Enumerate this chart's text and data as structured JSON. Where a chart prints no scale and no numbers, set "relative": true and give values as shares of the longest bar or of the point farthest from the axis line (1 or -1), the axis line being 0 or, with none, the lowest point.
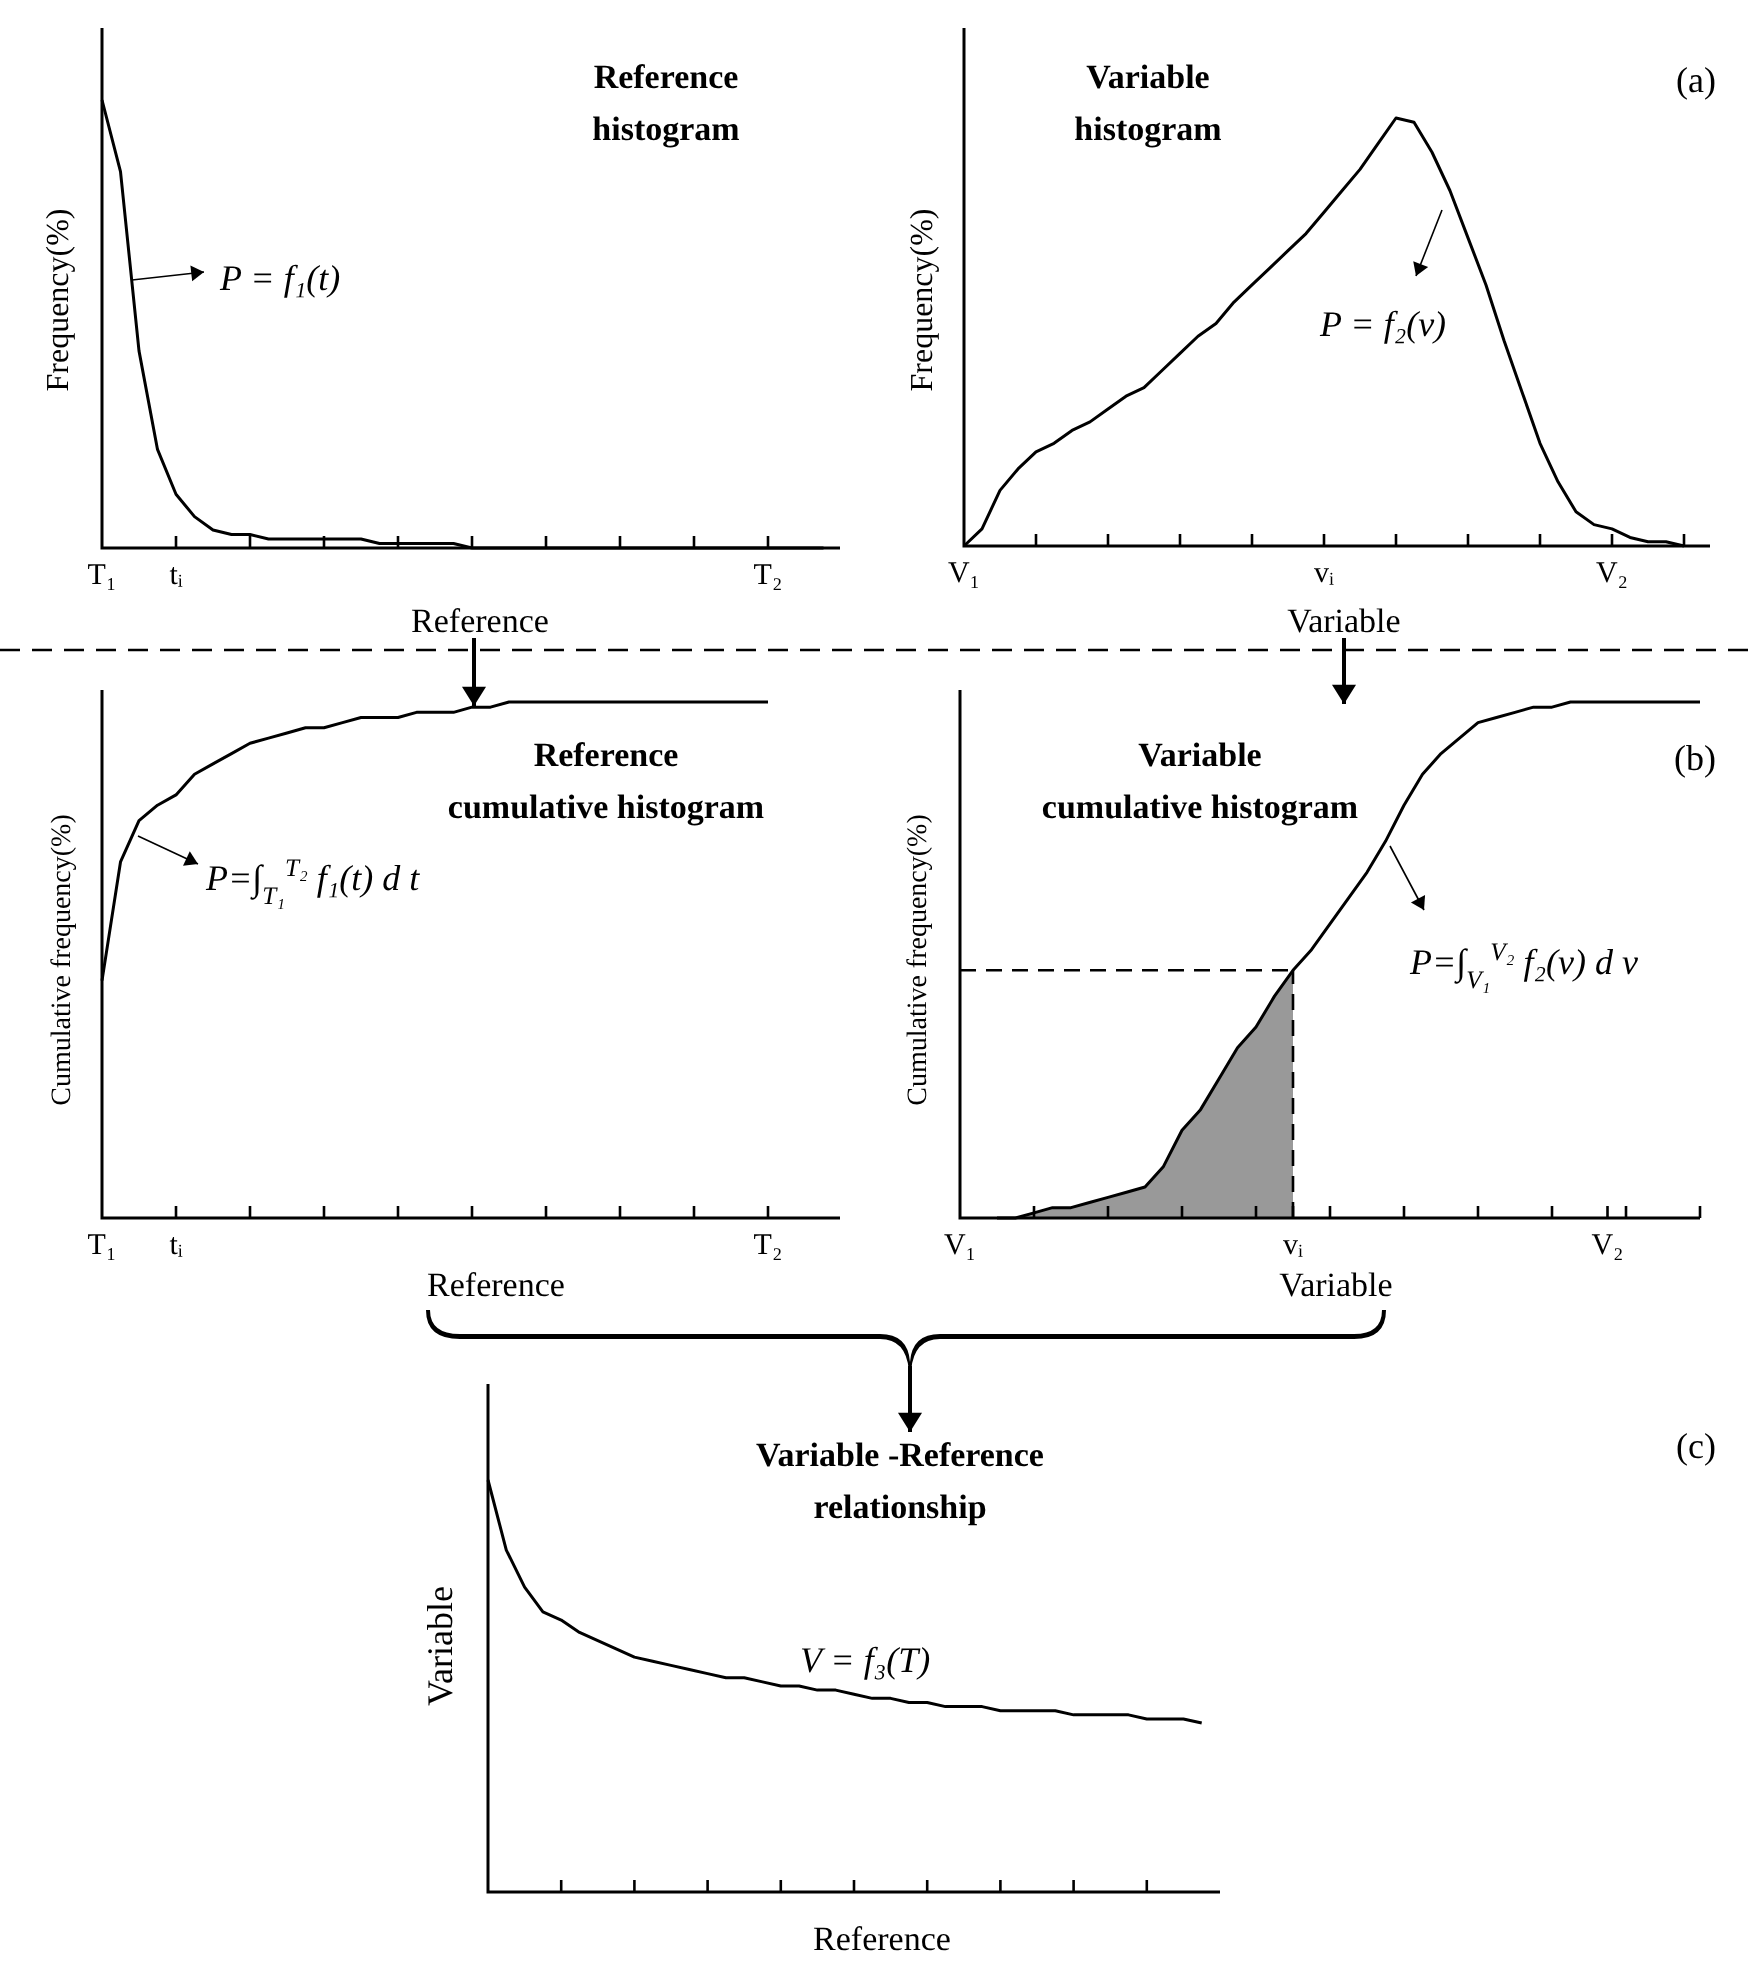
{
  "chart_data": [
    {
      "type": "line",
      "title": "Reference\nhistogram",
      "xlabel": "Reference",
      "ylabel": "Frequency(%)",
      "relative": true,
      "categories": [
        "T₁",
        null,
        null,
        null,
        "tᵢ",
        null,
        null,
        null,
        null,
        null,
        null,
        null,
        null,
        null,
        null,
        null,
        null,
        null,
        null,
        null,
        null,
        null,
        null,
        null,
        null,
        null,
        null,
        null,
        null,
        null,
        null,
        null,
        null,
        null,
        null,
        null,
        "T₂",
        null,
        null,
        null
      ],
      "series": [
        {
          "color": "#000000",
          "values": [
            1,
            0.84,
            0.44,
            0.22,
            0.12,
            0.07,
            0.04,
            0.03,
            0.03,
            0.02,
            0.02,
            0.02,
            0.02,
            0.02,
            0.02,
            0.01,
            0.01,
            0.01,
            0.01,
            0.01,
            0,
            0,
            0,
            0,
            0,
            0,
            0,
            0,
            0,
            0,
            0,
            0,
            0,
            0,
            0,
            0,
            0,
            0,
            0,
            0
          ]
        }
      ],
      "annotations": [
        "P = f₁(t)"
      ]
    },
    {
      "type": "line",
      "title": "Variable\nhistogram",
      "xlabel": "Variable",
      "ylabel": "Frequency(%)",
      "relative": true,
      "categories": [
        "V₁",
        null,
        null,
        null,
        null,
        null,
        null,
        null,
        null,
        null,
        null,
        null,
        null,
        null,
        null,
        null,
        null,
        null,
        null,
        null,
        "vᵢ",
        null,
        null,
        null,
        null,
        null,
        null,
        null,
        null,
        null,
        null,
        null,
        null,
        null,
        null,
        null,
        "V₂",
        null,
        null,
        null,
        null
      ],
      "series": [
        {
          "color": "#000000",
          "values": [
            0,
            0.04,
            0.13,
            0.18,
            0.22,
            0.24,
            0.27,
            0.29,
            0.32,
            0.35,
            0.37,
            0.41,
            0.45,
            0.49,
            0.52,
            0.57,
            0.61,
            0.65,
            0.69,
            0.73,
            0.78,
            0.83,
            0.88,
            0.94,
            1,
            0.99,
            0.92,
            0.83,
            0.72,
            0.61,
            0.48,
            0.36,
            0.24,
            0.15,
            0.08,
            0.05,
            0.04,
            0.02,
            0.01,
            0.01,
            0
          ]
        }
      ],
      "annotations": [
        "P = f₂(v)",
        "(a)"
      ]
    },
    {
      "type": "line",
      "title": "Reference\ncumulative histogram",
      "xlabel": "Reference",
      "ylabel": "Cumulative frequency(%)",
      "relative": true,
      "categories": [
        "T₁",
        null,
        null,
        null,
        "tᵢ",
        null,
        null,
        null,
        null,
        null,
        null,
        null,
        null,
        null,
        null,
        null,
        null,
        null,
        null,
        null,
        null,
        null,
        null,
        null,
        null,
        null,
        null,
        null,
        null,
        null,
        null,
        null,
        null,
        null,
        null,
        null,
        "T₂"
      ],
      "series": [
        {
          "color": "#000000",
          "values": [
            0.46,
            0.69,
            0.77,
            0.8,
            0.82,
            0.86,
            0.88,
            0.9,
            0.92,
            0.93,
            0.94,
            0.95,
            0.95,
            0.96,
            0.97,
            0.97,
            0.97,
            0.98,
            0.98,
            0.98,
            0.99,
            0.99,
            1,
            1,
            1,
            1,
            1,
            1,
            1,
            1,
            1,
            1,
            1,
            1,
            1,
            1,
            1
          ]
        }
      ],
      "annotations": [
        "P=∫$_{T₁}$$^{T₂}$ f₁(t) d t"
      ]
    },
    {
      "type": "line",
      "title": "Variable\ncumulative histogram",
      "xlabel": "Variable",
      "ylabel": "Cumulative frequency(%)",
      "relative": true,
      "categories": [
        "V₁",
        null,
        null,
        null,
        null,
        null,
        null,
        null,
        null,
        null,
        null,
        null,
        null,
        null,
        null,
        null,
        null,
        null,
        "vᵢ",
        null,
        null,
        null,
        null,
        null,
        null,
        null,
        null,
        null,
        null,
        null,
        null,
        null,
        null,
        null,
        null,
        "V₂",
        null,
        null,
        null,
        null,
        null
      ],
      "series": [
        {
          "type": "area",
          "color": "#999999",
          "values": [
            null,
            null,
            0,
            0,
            0.01,
            0.02,
            0.02,
            0.03,
            0.04,
            0.05,
            0.06,
            0.1,
            0.17,
            0.21,
            0.27,
            0.33,
            0.37,
            0.43,
            0.48,
            null,
            null,
            null,
            null,
            null,
            null,
            null,
            null,
            null,
            null,
            null,
            null,
            null,
            null,
            null,
            null,
            null,
            null,
            null,
            null,
            null,
            null
          ]
        },
        {
          "color": "#000000",
          "values": [
            null,
            null,
            0,
            0,
            0.01,
            0.02,
            0.02,
            0.03,
            0.04,
            0.05,
            0.06,
            0.1,
            0.17,
            0.21,
            0.27,
            0.33,
            0.37,
            0.43,
            0.48,
            0.52,
            0.57,
            0.62,
            0.67,
            0.73,
            0.8,
            0.86,
            0.9,
            0.93,
            0.96,
            0.97,
            0.98,
            0.99,
            0.99,
            1,
            1,
            1,
            1,
            1,
            1,
            1,
            1
          ]
        }
      ],
      "ref_lines": [
        {
          "axis": "x",
          "value": "vᵢ",
          "line_style": "dashed"
        },
        {
          "axis": "y",
          "value": 0.48,
          "line_style": "dashed"
        }
      ],
      "annotations": [
        "P=∫$_{V₁}$$^{V₂}$ f₂(v) d v",
        "(b)"
      ]
    },
    {
      "type": "line",
      "title": "Variable -Reference\nrelationship",
      "xlabel": "Reference",
      "ylabel": "Variable",
      "relative": true,
      "categories": [
        null,
        null,
        null,
        null,
        null,
        null,
        null,
        null,
        null,
        null,
        null,
        null,
        null,
        null,
        null,
        null,
        null,
        null,
        null,
        null,
        null,
        null,
        null,
        null,
        null,
        null,
        null,
        null,
        null,
        null,
        null,
        null,
        null,
        null,
        null,
        null,
        null,
        null,
        null,
        null
      ],
      "series": [
        {
          "color": "#000000",
          "values": [
            1,
            0.83,
            0.74,
            0.68,
            0.66,
            0.63,
            0.61,
            0.59,
            0.57,
            0.56,
            0.55,
            0.54,
            0.53,
            0.52,
            0.52,
            0.51,
            0.5,
            0.5,
            0.49,
            0.49,
            0.48,
            0.47,
            0.47,
            0.46,
            0.46,
            0.45,
            0.45,
            0.45,
            0.44,
            0.44,
            0.44,
            0.44,
            0.43,
            0.43,
            0.43,
            0.43,
            0.42,
            0.42,
            0.42,
            0.41
          ]
        }
      ],
      "annotations": [
        "V = f₃(T)",
        "(c)"
      ]
    }
  ]
}
